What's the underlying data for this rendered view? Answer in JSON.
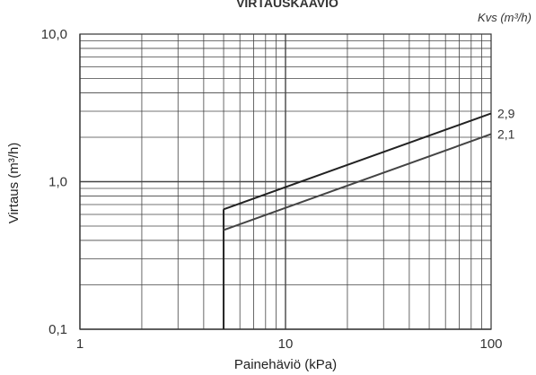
{
  "chart_data": {
    "type": "line",
    "title": "VIRTAUSKAAVIO",
    "series_unit_label": "Kvs (m³/h)",
    "xlabel": "Painehäviö (kPa)",
    "ylabel": "Virtaus (m³/h)",
    "xscale": "log",
    "yscale": "log",
    "xlim": [
      1,
      100
    ],
    "ylim": [
      0.1,
      10
    ],
    "x_ticks": [
      1,
      10,
      100
    ],
    "x_tick_labels": [
      "1",
      "10",
      "100"
    ],
    "y_ticks": [
      0.1,
      1,
      10
    ],
    "y_tick_labels": [
      "0,1",
      "1,0",
      "10,0"
    ],
    "grid": true,
    "series": [
      {
        "name": "2,9",
        "label_text": "2,9",
        "x": [
          5,
          100
        ],
        "y": [
          0.65,
          2.9
        ]
      },
      {
        "name": "2,1",
        "label_text": "2,1",
        "x": [
          5,
          100
        ],
        "y": [
          0.47,
          2.1
        ]
      }
    ],
    "min_pressure_line": {
      "x": 5,
      "y": [
        0.1,
        0.65
      ]
    },
    "colors": {
      "grid": "#444444",
      "series_a": "#222222",
      "series_b": "#444444",
      "frame": "#333333"
    }
  }
}
